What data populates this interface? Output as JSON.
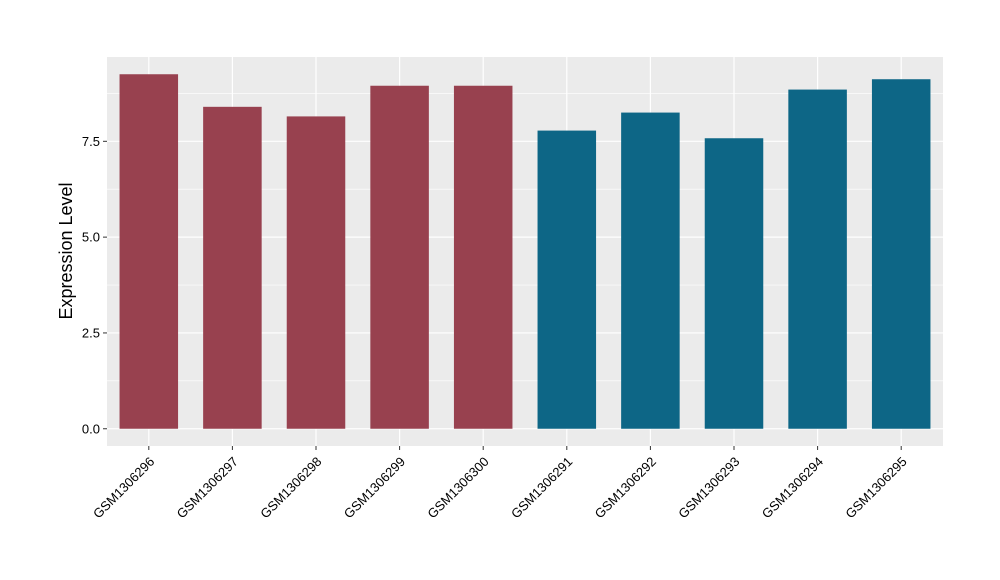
{
  "chart_data": {
    "type": "bar",
    "title": "",
    "xlabel": "",
    "ylabel": "Expression Level",
    "categories": [
      "GSM1306296",
      "GSM1306297",
      "GSM1306298",
      "GSM1306299",
      "GSM1306300",
      "GSM1306291",
      "GSM1306292",
      "GSM1306293",
      "GSM1306294",
      "GSM1306295"
    ],
    "values": [
      9.25,
      8.4,
      8.15,
      8.95,
      8.95,
      7.78,
      8.25,
      7.58,
      8.85,
      9.12
    ],
    "bar_colors": [
      "#98414f",
      "#98414f",
      "#98414f",
      "#98414f",
      "#98414f",
      "#0d6686",
      "#0d6686",
      "#0d6686",
      "#0d6686",
      "#0d6686"
    ],
    "ylim": [
      -0.45,
      9.7
    ],
    "yticks": [
      0.0,
      2.5,
      5.0,
      7.5
    ],
    "ytick_labels": [
      "0.0",
      "2.5",
      "5.0",
      "7.5"
    ],
    "grid": true,
    "panel_background": "#ebebeb",
    "grid_color": "#ffffff"
  }
}
